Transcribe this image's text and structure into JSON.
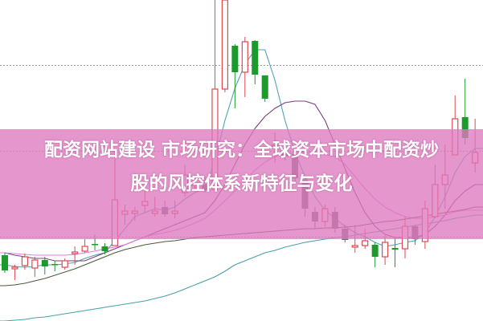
{
  "title": {
    "line1": "配资网站建设 市场研究：全球资本市场中配资炒",
    "line2": "股的风控体系新特征与变化"
  },
  "colors": {
    "up": "#e0484f",
    "down": "#1d9a2c",
    "down_dim": "#6f6f6f",
    "banner": "#de78be",
    "grid": "#999999"
  },
  "chart_data": {
    "type": "candlestick",
    "title": "",
    "xlabel": "",
    "ylabel": "",
    "ylim": [
      0,
      400
    ],
    "grid": true,
    "grid_style": "dotted-horizontal",
    "grid_y": [
      319,
      212,
      105,
      -2
    ],
    "candles": [
      [
        82,
        85,
        60,
        63,
        "down"
      ],
      [
        65,
        70,
        51,
        67,
        "up"
      ],
      [
        69,
        84,
        64,
        80,
        "up"
      ],
      [
        66,
        80,
        55,
        76,
        "up"
      ],
      [
        76,
        80,
        58,
        68,
        "down"
      ],
      [
        71,
        75,
        62,
        70,
        "down"
      ],
      [
        67,
        78,
        64,
        75,
        "up"
      ],
      [
        84,
        93,
        70,
        86,
        "up"
      ],
      [
        87,
        102,
        85,
        93,
        "up"
      ],
      [
        96,
        108,
        88,
        95,
        "down"
      ],
      [
        93,
        97,
        83,
        87,
        "down"
      ],
      [
        94,
        212,
        94,
        151,
        "up"
      ],
      [
        133,
        145,
        120,
        137,
        "up"
      ],
      [
        134,
        142,
        125,
        137,
        "up"
      ],
      [
        144,
        165,
        135,
        149,
        "up"
      ],
      [
        134,
        155,
        130,
        137,
        "up"
      ],
      [
        142,
        150,
        130,
        133,
        "down_dim"
      ],
      [
        134,
        150,
        128,
        137,
        "up"
      ],
      [
        160,
        195,
        155,
        182,
        "up"
      ],
      [
        169,
        182,
        164,
        171,
        "up"
      ],
      [
        170,
        180,
        160,
        163,
        "down_dim"
      ],
      [
        164,
        400,
        164,
        289,
        "up"
      ],
      [
        289,
        400,
        285,
        400,
        "up"
      ],
      [
        343,
        345,
        265,
        310,
        "down"
      ],
      [
        310,
        354,
        279,
        348,
        "up"
      ],
      [
        349,
        350,
        295,
        307,
        "down"
      ],
      [
        306,
        306,
        273,
        277,
        "down"
      ],
      [
        217,
        235,
        197,
        219,
        "up"
      ],
      [
        216,
        225,
        200,
        205,
        "down_dim"
      ],
      [
        208,
        215,
        172,
        178,
        "down_dim"
      ],
      [
        176,
        180,
        130,
        140,
        "down_dim"
      ],
      [
        136,
        142,
        115,
        124,
        "down_dim"
      ],
      [
        124,
        145,
        118,
        140,
        "up"
      ],
      [
        136,
        142,
        110,
        115,
        "down_dim"
      ],
      [
        115,
        120,
        98,
        101,
        "down_dim"
      ],
      [
        92,
        120,
        85,
        94,
        "up"
      ],
      [
        94,
        115,
        90,
        100,
        "up"
      ],
      [
        95,
        98,
        67,
        80,
        "down"
      ],
      [
        80,
        107,
        70,
        98,
        "up"
      ],
      [
        91,
        105,
        67,
        89,
        "down"
      ],
      [
        90,
        130,
        78,
        118,
        "up"
      ],
      [
        118,
        120,
        95,
        102,
        "down_dim"
      ],
      [
        99,
        150,
        90,
        140,
        "up"
      ],
      [
        130,
        195,
        128,
        170,
        "up"
      ],
      [
        170,
        220,
        140,
        182,
        "up"
      ],
      [
        207,
        281,
        207,
        252,
        "up"
      ],
      [
        254,
        302,
        220,
        228,
        "down"
      ],
      [
        197,
        252,
        185,
        210,
        "up"
      ]
    ],
    "candle_fields": [
      "open",
      "high",
      "low",
      "close",
      "direction"
    ],
    "series": [
      {
        "color": "#4fa3b5",
        "values": [
          70,
          68,
          67,
          68,
          70,
          70,
          71,
          73,
          78,
          82,
          85,
          100,
          115,
          130,
          135,
          140,
          138,
          142,
          152,
          160,
          165,
          200,
          250,
          290,
          320,
          338,
          338,
          300,
          250,
          210,
          180,
          155,
          138,
          128,
          118,
          110,
          105,
          98,
          93,
          95,
          98,
          100,
          110,
          130,
          155,
          185,
          205,
          215
        ]
      },
      {
        "color": "#7d3c7d",
        "values": [
          85,
          82,
          80,
          78,
          78,
          75,
          75,
          75,
          75,
          80,
          85,
          90,
          95,
          100,
          105,
          110,
          115,
          120,
          125,
          130,
          135,
          150,
          170,
          195,
          220,
          240,
          255,
          265,
          272,
          274,
          274,
          270,
          250,
          220,
          190,
          160,
          135,
          118,
          108,
          104,
          104,
          104,
          108,
          118,
          132,
          150,
          162,
          170
        ]
      },
      {
        "color": "#e07be0",
        "values": [
          85,
          84,
          83,
          82,
          82,
          82,
          82,
          83,
          85,
          87,
          90,
          92,
          95,
          100,
          105,
          108,
          110,
          113,
          117,
          122,
          128,
          138,
          150,
          162,
          175,
          188,
          198,
          205,
          208,
          210,
          210,
          210,
          208,
          205,
          195,
          180,
          165,
          152,
          142,
          135,
          130,
          128,
          128,
          130,
          132,
          136,
          138,
          138
        ]
      },
      {
        "color": "#4a5a3a",
        "values": [
          44,
          45,
          47,
          50,
          53,
          57,
          61,
          65,
          70,
          75,
          80,
          85,
          89,
          92,
          95,
          97,
          99,
          100,
          102,
          104,
          105,
          106,
          107,
          108,
          109,
          110,
          111,
          112,
          113,
          114,
          115,
          115,
          116,
          116,
          117,
          118,
          120,
          122,
          124,
          125,
          127,
          129,
          131,
          133,
          135,
          137,
          139,
          142
        ]
      },
      {
        "color": "#4a9fa8",
        "values": [
          0,
          1,
          2,
          4,
          5,
          7,
          9,
          11,
          13,
          15,
          17,
          19,
          21,
          23,
          25,
          28,
          31,
          35,
          40,
          45,
          50,
          55,
          62,
          70,
          75,
          80,
          85,
          88,
          92,
          95,
          98,
          100,
          102,
          104,
          105,
          107,
          109,
          111,
          113,
          115,
          117,
          119,
          121,
          123,
          125,
          128,
          130,
          132
        ]
      }
    ]
  }
}
